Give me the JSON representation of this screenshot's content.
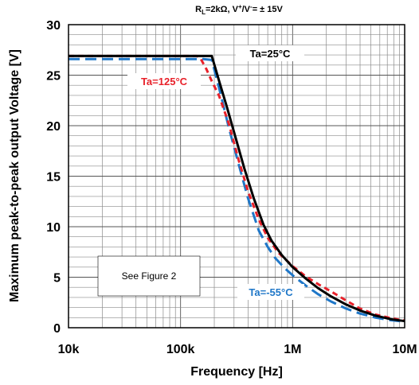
{
  "chart_data": {
    "type": "line",
    "title": {
      "r": "R",
      "r_sub": "L",
      "part1": "=2kΩ, V",
      "plus": "+",
      "slash": "/V",
      "minus": "-",
      "part2": "= ± 15V"
    },
    "xlabel": "Frequency [Hz]",
    "ylabel": "Maximum peak-to-peak output Voltage [V]",
    "x_scale": "log",
    "xlim": [
      10000,
      10000000
    ],
    "ylim": [
      0,
      30
    ],
    "x_ticks": [
      {
        "value": 10000,
        "label": "10k"
      },
      {
        "value": 100000,
        "label": "100k"
      },
      {
        "value": 1000000,
        "label": "1M"
      },
      {
        "value": 10000000,
        "label": "10M"
      }
    ],
    "y_ticks": [
      {
        "value": 0,
        "label": "0"
      },
      {
        "value": 5,
        "label": "5"
      },
      {
        "value": 10,
        "label": "10"
      },
      {
        "value": 15,
        "label": "15"
      },
      {
        "value": 20,
        "label": "20"
      },
      {
        "value": 25,
        "label": "25"
      },
      {
        "value": 30,
        "label": "30"
      }
    ],
    "grid": true,
    "series": [
      {
        "name": "Ta=-55°C",
        "color": "#1f77c8",
        "dash": "dashed",
        "points": [
          [
            10000,
            26.6
          ],
          [
            130000,
            26.6
          ],
          [
            160000,
            26.6
          ],
          [
            190000,
            26.5
          ],
          [
            220000,
            23.8
          ],
          [
            270000,
            19.8
          ],
          [
            330000,
            16.2
          ],
          [
            400000,
            12.8
          ],
          [
            500000,
            9.6
          ],
          [
            600000,
            8.0
          ],
          [
            700000,
            6.9
          ],
          [
            850000,
            5.9
          ],
          [
            1000000,
            5.2
          ],
          [
            1300000,
            4.2
          ],
          [
            1700000,
            3.3
          ],
          [
            2200000,
            2.6
          ],
          [
            3000000,
            1.9
          ],
          [
            4000000,
            1.4
          ],
          [
            5500000,
            1.0
          ],
          [
            7500000,
            0.75
          ],
          [
            10000000,
            0.6
          ]
        ]
      },
      {
        "name": "Ta=25°C",
        "color": "#000000",
        "dash": "solid",
        "points": [
          [
            10000,
            26.9
          ],
          [
            150000,
            26.9
          ],
          [
            190000,
            26.9
          ],
          [
            220000,
            24.5
          ],
          [
            260000,
            21.8
          ],
          [
            310000,
            18.8
          ],
          [
            370000,
            15.8
          ],
          [
            450000,
            12.8
          ],
          [
            550000,
            10.2
          ],
          [
            650000,
            8.6
          ],
          [
            800000,
            7.2
          ],
          [
            1000000,
            6.0
          ],
          [
            1300000,
            4.9
          ],
          [
            1700000,
            3.9
          ],
          [
            2200000,
            3.1
          ],
          [
            3000000,
            2.3
          ],
          [
            4000000,
            1.7
          ],
          [
            5500000,
            1.2
          ],
          [
            7500000,
            0.85
          ],
          [
            10000000,
            0.65
          ]
        ]
      },
      {
        "name": "Ta=125°C",
        "color": "#e8212a",
        "dash": "dashed",
        "points": [
          [
            10000,
            26.9
          ],
          [
            120000,
            26.9
          ],
          [
            140000,
            26.9
          ],
          [
            150000,
            26.7
          ],
          [
            170000,
            25.6
          ],
          [
            190000,
            24.4
          ],
          [
            220000,
            23.0
          ],
          [
            270000,
            20.2
          ],
          [
            330000,
            16.6
          ],
          [
            400000,
            13.5
          ],
          [
            500000,
            10.7
          ],
          [
            600000,
            8.9
          ],
          [
            750000,
            7.4
          ],
          [
            1000000,
            6.1
          ],
          [
            1300000,
            5.1
          ],
          [
            1700000,
            4.3
          ],
          [
            2200000,
            3.6
          ],
          [
            3000000,
            2.7
          ],
          [
            4000000,
            1.9
          ],
          [
            5500000,
            1.3
          ],
          [
            7500000,
            0.95
          ],
          [
            10000000,
            0.7
          ]
        ]
      }
    ],
    "annotations": {
      "t25": "Ta=25°C",
      "t125": "Ta=125°C",
      "tm55": "Ta=-55°C",
      "see_figure": "See Figure 2"
    }
  }
}
